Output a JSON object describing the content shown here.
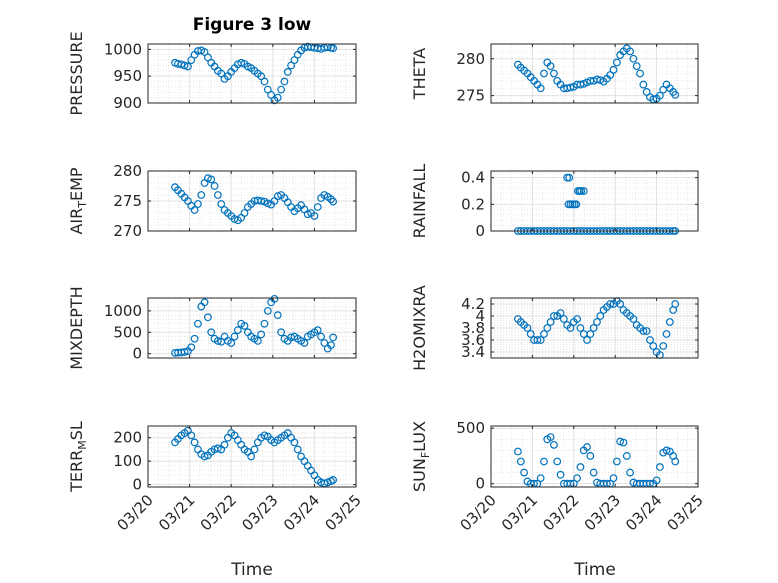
{
  "chart_data": [
    {
      "type": "scatter",
      "title": "Figure 3 low",
      "ylabel": "PRESSURE",
      "xlabel": "",
      "xlim": [
        "03/20",
        "03/25"
      ],
      "ylim": [
        900,
        1010
      ],
      "yticks": [
        900,
        950,
        1000
      ],
      "xticks": [
        "03/20",
        "03/21",
        "03/22",
        "03/23",
        "03/24",
        "03/25"
      ],
      "grid": "on",
      "color": "#0072BD",
      "x": [
        0.65,
        0.72,
        0.8,
        0.88,
        0.96,
        1.04,
        1.12,
        1.2,
        1.28,
        1.36,
        1.44,
        1.52,
        1.6,
        1.68,
        1.76,
        1.84,
        1.92,
        2.0,
        2.08,
        2.16,
        2.24,
        2.32,
        2.4,
        2.48,
        2.56,
        2.64,
        2.72,
        2.8,
        2.88,
        2.96,
        3.04,
        3.12,
        3.2,
        3.28,
        3.36,
        3.44,
        3.52,
        3.6,
        3.68,
        3.76,
        3.84,
        3.92,
        4.0,
        4.08,
        4.16,
        4.24,
        4.32,
        4.4,
        4.45
      ],
      "y": [
        975,
        973,
        972,
        970,
        968,
        980,
        990,
        997,
        998,
        995,
        985,
        975,
        968,
        960,
        955,
        945,
        950,
        958,
        965,
        972,
        975,
        973,
        968,
        965,
        960,
        955,
        950,
        940,
        925,
        915,
        905,
        910,
        925,
        940,
        958,
        970,
        980,
        990,
        998,
        1003,
        1005,
        1004,
        1003,
        1002,
        1001,
        1003,
        1004,
        1003,
        1002
      ]
    },
    {
      "type": "scatter",
      "title": "",
      "ylabel": "THETA",
      "xlabel": "",
      "xlim": [
        "03/20",
        "03/25"
      ],
      "ylim": [
        274,
        282
      ],
      "yticks": [
        275,
        280
      ],
      "xticks": [
        "03/20",
        "03/21",
        "03/22",
        "03/23",
        "03/24",
        "03/25"
      ],
      "grid": "on",
      "color": "#0072BD",
      "x": [
        0.65,
        0.72,
        0.8,
        0.88,
        0.96,
        1.04,
        1.12,
        1.2,
        1.28,
        1.36,
        1.44,
        1.52,
        1.6,
        1.68,
        1.76,
        1.84,
        1.92,
        2.0,
        2.08,
        2.16,
        2.24,
        2.32,
        2.4,
        2.48,
        2.56,
        2.64,
        2.72,
        2.8,
        2.88,
        2.96,
        3.04,
        3.12,
        3.2,
        3.28,
        3.36,
        3.44,
        3.52,
        3.6,
        3.68,
        3.76,
        3.84,
        3.92,
        4.0,
        4.08,
        4.16,
        4.24,
        4.32,
        4.4,
        4.45
      ],
      "y": [
        279.2,
        278.8,
        278.4,
        278.0,
        277.5,
        277.0,
        276.5,
        276.0,
        278.0,
        279.5,
        279.0,
        278.0,
        277.0,
        276.5,
        276.0,
        276.0,
        276.1,
        276.2,
        276.5,
        276.5,
        276.6,
        276.8,
        277.0,
        277.0,
        277.2,
        277.1,
        276.9,
        277.3,
        277.8,
        278.5,
        279.5,
        280.5,
        281.0,
        281.4,
        281.0,
        280.0,
        279.0,
        278.0,
        276.5,
        275.5,
        274.8,
        274.5,
        274.6,
        275.0,
        275.8,
        276.5,
        276.0,
        275.5,
        275.1
      ]
    },
    {
      "type": "scatter",
      "title": "",
      "ylabel": "AIR_TEMP",
      "xlabel": "",
      "xlim": [
        "03/20",
        "03/25"
      ],
      "ylim": [
        270,
        280
      ],
      "yticks": [
        270,
        275,
        280
      ],
      "xticks": [
        "03/20",
        "03/21",
        "03/22",
        "03/23",
        "03/24",
        "03/25"
      ],
      "grid": "on",
      "color": "#0072BD",
      "x": [
        0.65,
        0.72,
        0.8,
        0.88,
        0.96,
        1.04,
        1.12,
        1.2,
        1.28,
        1.36,
        1.44,
        1.52,
        1.6,
        1.68,
        1.76,
        1.84,
        1.92,
        2.0,
        2.08,
        2.16,
        2.24,
        2.32,
        2.4,
        2.48,
        2.56,
        2.64,
        2.72,
        2.8,
        2.88,
        2.96,
        3.04,
        3.12,
        3.2,
        3.28,
        3.36,
        3.44,
        3.52,
        3.6,
        3.68,
        3.76,
        3.84,
        3.92,
        4.0,
        4.08,
        4.16,
        4.24,
        4.32,
        4.4,
        4.45
      ],
      "y": [
        277.3,
        276.8,
        276.2,
        275.6,
        275.0,
        274.2,
        273.5,
        274.5,
        276.0,
        278.0,
        278.8,
        278.6,
        277.5,
        276.0,
        274.5,
        273.5,
        273.0,
        272.5,
        272.0,
        271.8,
        272.2,
        273.0,
        274.0,
        274.5,
        275.0,
        275.1,
        275.0,
        274.9,
        274.6,
        274.4,
        275.0,
        275.8,
        276.0,
        275.5,
        274.8,
        274.0,
        273.3,
        273.8,
        274.3,
        273.6,
        272.8,
        273.0,
        272.5,
        274.0,
        275.5,
        276.0,
        275.7,
        275.3,
        274.9
      ]
    },
    {
      "type": "scatter",
      "title": "",
      "ylabel": "RAINFALL",
      "xlabel": "",
      "xlim": [
        "03/20",
        "03/25"
      ],
      "ylim": [
        0,
        0.45
      ],
      "yticks": [
        0,
        0.2,
        0.4
      ],
      "xticks": [
        "03/20",
        "03/21",
        "03/22",
        "03/23",
        "03/24",
        "03/25"
      ],
      "grid": "on",
      "color": "#0072BD",
      "x": [
        0.65,
        0.72,
        0.8,
        0.88,
        0.96,
        1.04,
        1.12,
        1.2,
        1.28,
        1.36,
        1.44,
        1.52,
        1.6,
        1.68,
        1.76,
        1.84,
        1.92,
        2.0,
        2.08,
        2.16,
        2.24,
        2.32,
        2.4,
        2.48,
        2.56,
        2.64,
        2.72,
        2.8,
        2.88,
        2.96,
        3.04,
        3.12,
        3.2,
        3.28,
        3.36,
        3.44,
        3.52,
        3.6,
        3.68,
        3.76,
        3.84,
        3.92,
        4.0,
        4.08,
        4.16,
        4.24,
        4.32,
        4.4,
        4.45,
        1.87,
        1.92,
        1.97,
        2.02,
        2.06,
        2.1,
        2.14,
        2.18,
        2.24,
        1.84,
        1.89
      ],
      "y": [
        0,
        0,
        0,
        0,
        0,
        0,
        0,
        0,
        0,
        0,
        0,
        0,
        0,
        0,
        0,
        0,
        0,
        0,
        0,
        0,
        0,
        0,
        0,
        0,
        0,
        0,
        0,
        0,
        0,
        0,
        0,
        0,
        0,
        0,
        0,
        0,
        0,
        0,
        0,
        0,
        0,
        0,
        0,
        0,
        0,
        0,
        0,
        0,
        0,
        0.2,
        0.2,
        0.2,
        0.2,
        0.2,
        0.3,
        0.3,
        0.3,
        0.3,
        0.4,
        0.4
      ]
    },
    {
      "type": "scatter",
      "title": "",
      "ylabel": "MIXDEPTH",
      "xlabel": "",
      "xlim": [
        "03/20",
        "03/25"
      ],
      "ylim": [
        -100,
        1300
      ],
      "yticks": [
        0,
        500,
        1000
      ],
      "xticks": [
        "03/20",
        "03/21",
        "03/22",
        "03/23",
        "03/24",
        "03/25"
      ],
      "grid": "on",
      "color": "#0072BD",
      "x": [
        0.65,
        0.72,
        0.8,
        0.88,
        0.96,
        1.04,
        1.12,
        1.2,
        1.28,
        1.36,
        1.44,
        1.52,
        1.6,
        1.68,
        1.76,
        1.84,
        1.92,
        2.0,
        2.08,
        2.16,
        2.24,
        2.32,
        2.4,
        2.48,
        2.56,
        2.64,
        2.72,
        2.8,
        2.88,
        2.96,
        3.04,
        3.12,
        3.2,
        3.28,
        3.36,
        3.44,
        3.52,
        3.6,
        3.68,
        3.76,
        3.84,
        3.92,
        4.0,
        4.08,
        4.16,
        4.24,
        4.32,
        4.4,
        4.45
      ],
      "y": [
        20,
        25,
        30,
        40,
        60,
        150,
        350,
        700,
        1100,
        1200,
        850,
        500,
        350,
        300,
        280,
        400,
        300,
        250,
        400,
        550,
        700,
        650,
        500,
        400,
        350,
        300,
        450,
        700,
        1000,
        1200,
        1280,
        900,
        500,
        350,
        300,
        380,
        400,
        350,
        300,
        250,
        400,
        450,
        500,
        550,
        400,
        250,
        120,
        200,
        380
      ]
    },
    {
      "type": "scatter",
      "title": "",
      "ylabel": "H2OMIXRA",
      "xlabel": "",
      "xlim": [
        "03/20",
        "03/25"
      ],
      "ylim": [
        3.3,
        4.3
      ],
      "yticks": [
        3.4,
        3.6,
        3.8,
        4.0,
        4.2
      ],
      "ytick_labels": [
        "3.4",
        "3.6",
        "3.8",
        "4",
        "4.2"
      ],
      "xticks": [
        "03/20",
        "03/21",
        "03/22",
        "03/23",
        "03/24",
        "03/25"
      ],
      "grid": "on",
      "color": "#0072BD",
      "x": [
        0.65,
        0.72,
        0.8,
        0.88,
        0.96,
        1.04,
        1.12,
        1.2,
        1.28,
        1.36,
        1.44,
        1.52,
        1.6,
        1.68,
        1.76,
        1.84,
        1.92,
        2.0,
        2.08,
        2.16,
        2.24,
        2.32,
        2.4,
        2.48,
        2.56,
        2.64,
        2.72,
        2.8,
        2.88,
        2.96,
        3.04,
        3.12,
        3.2,
        3.28,
        3.36,
        3.44,
        3.52,
        3.6,
        3.68,
        3.76,
        3.84,
        3.92,
        4.0,
        4.08,
        4.16,
        4.24,
        4.32,
        4.4,
        4.45
      ],
      "y": [
        3.95,
        3.9,
        3.85,
        3.8,
        3.7,
        3.6,
        3.6,
        3.6,
        3.7,
        3.8,
        3.9,
        4.0,
        4.0,
        4.05,
        3.95,
        3.85,
        3.8,
        3.9,
        3.95,
        3.8,
        3.7,
        3.6,
        3.7,
        3.8,
        3.9,
        4.0,
        4.1,
        4.15,
        4.2,
        4.2,
        4.25,
        4.2,
        4.1,
        4.05,
        4.0,
        3.95,
        3.85,
        3.8,
        3.75,
        3.75,
        3.6,
        3.5,
        3.4,
        3.35,
        3.5,
        3.7,
        3.9,
        4.1,
        4.2
      ]
    },
    {
      "type": "scatter",
      "title": "",
      "ylabel": "TERR_MSL",
      "xlabel": "Time",
      "xlim": [
        "03/20",
        "03/25"
      ],
      "ylim": [
        -10,
        250
      ],
      "yticks": [
        0,
        100,
        200
      ],
      "xticks": [
        "03/20",
        "03/21",
        "03/22",
        "03/23",
        "03/24",
        "03/25"
      ],
      "grid": "on",
      "color": "#0072BD",
      "x": [
        0.65,
        0.72,
        0.8,
        0.88,
        0.96,
        1.04,
        1.12,
        1.2,
        1.28,
        1.36,
        1.44,
        1.52,
        1.6,
        1.68,
        1.76,
        1.84,
        1.92,
        2.0,
        2.08,
        2.16,
        2.24,
        2.32,
        2.4,
        2.48,
        2.56,
        2.64,
        2.72,
        2.8,
        2.88,
        2.96,
        3.04,
        3.12,
        3.2,
        3.28,
        3.36,
        3.44,
        3.52,
        3.6,
        3.68,
        3.76,
        3.84,
        3.92,
        4.0,
        4.08,
        4.16,
        4.24,
        4.32,
        4.4,
        4.45
      ],
      "y": [
        180,
        195,
        210,
        220,
        230,
        210,
        180,
        150,
        130,
        120,
        125,
        140,
        150,
        155,
        150,
        170,
        200,
        220,
        210,
        190,
        170,
        150,
        140,
        120,
        150,
        180,
        200,
        210,
        205,
        190,
        180,
        190,
        200,
        210,
        220,
        200,
        180,
        150,
        120,
        100,
        80,
        60,
        40,
        20,
        10,
        5,
        10,
        15,
        20
      ]
    },
    {
      "type": "scatter",
      "title": "",
      "ylabel": "SUN_FLUX",
      "xlabel": "Time",
      "xlim": [
        "03/20",
        "03/25"
      ],
      "ylim": [
        -30,
        520
      ],
      "yticks": [
        0,
        500
      ],
      "xticks": [
        "03/20",
        "03/21",
        "03/22",
        "03/23",
        "03/24",
        "03/25"
      ],
      "grid": "on",
      "color": "#0072BD",
      "x": [
        0.65,
        0.72,
        0.8,
        0.88,
        0.96,
        1.04,
        1.12,
        1.2,
        1.28,
        1.36,
        1.44,
        1.52,
        1.6,
        1.68,
        1.76,
        1.84,
        1.92,
        2.0,
        2.08,
        2.16,
        2.24,
        2.32,
        2.4,
        2.48,
        2.56,
        2.64,
        2.72,
        2.8,
        2.88,
        2.96,
        3.04,
        3.12,
        3.2,
        3.28,
        3.36,
        3.44,
        3.52,
        3.6,
        3.68,
        3.76,
        3.84,
        3.92,
        4.0,
        4.08,
        4.16,
        4.24,
        4.32,
        4.4,
        4.45
      ],
      "y": [
        290,
        200,
        100,
        20,
        0,
        0,
        0,
        50,
        200,
        400,
        420,
        350,
        200,
        80,
        0,
        0,
        0,
        0,
        50,
        150,
        300,
        330,
        250,
        100,
        10,
        0,
        0,
        0,
        0,
        50,
        200,
        380,
        370,
        250,
        100,
        10,
        0,
        0,
        0,
        0,
        0,
        0,
        30,
        150,
        280,
        300,
        290,
        250,
        200
      ]
    }
  ]
}
